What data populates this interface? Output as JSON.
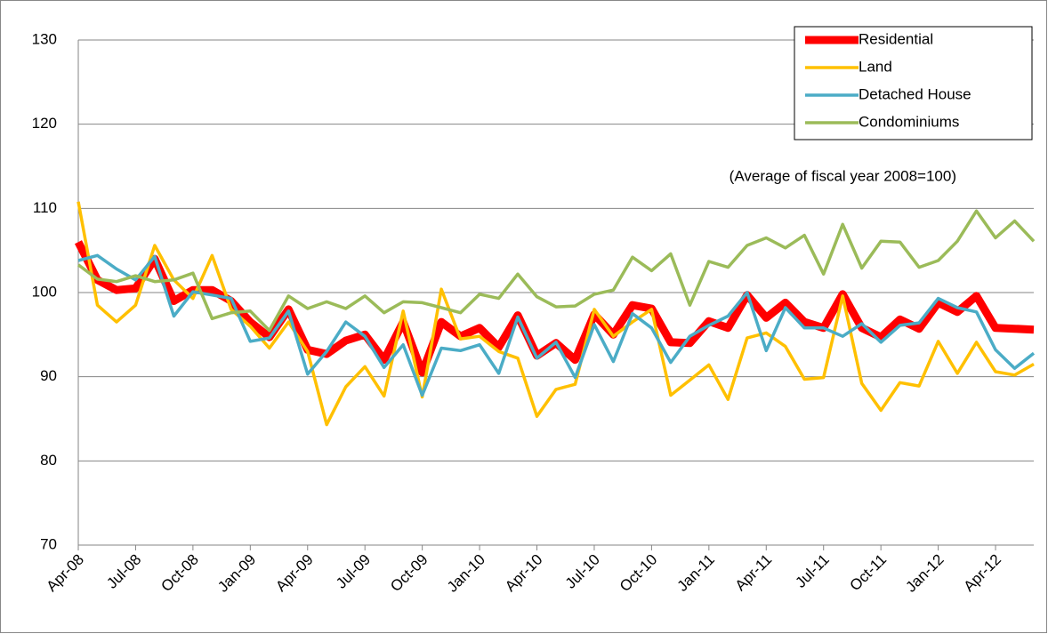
{
  "chart_data": {
    "type": "line",
    "annotation": "(Average of fiscal year 2008=100)",
    "categories": [
      "Apr-08",
      null,
      null,
      "Jul-08",
      null,
      null,
      "Oct-08",
      null,
      null,
      "Jan-09",
      null,
      null,
      "Apr-09",
      null,
      null,
      "Jul-09",
      null,
      null,
      "Oct-09",
      null,
      null,
      "Jan-10",
      null,
      null,
      "Apr-10",
      null,
      null,
      "Jul-10",
      null,
      null,
      "Oct-10",
      null,
      null,
      "Jan-11",
      null,
      null,
      "Apr-11",
      null,
      null,
      "Jul-11",
      null,
      null,
      "Oct-11",
      null,
      null,
      "Jan-12",
      null,
      null,
      "Apr-12",
      null,
      null
    ],
    "series": [
      {
        "name": "Residential",
        "color": "#ff0000",
        "values": [
          106,
          101.5,
          100.3,
          100.5,
          104,
          99,
          100.3,
          100.3,
          99,
          96.5,
          94.7,
          98,
          93.2,
          92.7,
          94.3,
          95,
          92,
          96.5,
          90.5,
          96.5,
          94.8,
          95.8,
          93.5,
          97.3,
          92.5,
          94,
          92,
          97.4,
          95,
          98.5,
          98.1,
          94.1,
          94,
          96.6,
          95.8,
          99.7,
          97,
          98.8,
          96.5,
          95.8,
          99.8,
          95.8,
          94.7,
          96.8,
          95.7,
          98.8,
          97.7,
          99.6,
          95.8,
          95.7,
          95.6
        ]
      },
      {
        "name": "Land",
        "color": "#ffc000",
        "values": [
          110.8,
          98.5,
          96.5,
          98.5,
          105.6,
          101.5,
          99.3,
          104.4,
          98,
          96,
          93.4,
          96.5,
          93,
          84.3,
          88.8,
          91.2,
          87.7,
          97.8,
          87.6,
          100.4,
          94.5,
          94.8,
          93,
          92.2,
          85.3,
          88.5,
          89.1,
          98,
          94.8,
          96.5,
          98,
          87.8,
          89.6,
          91.4,
          87.3,
          94.6,
          95.2,
          93.6,
          89.7,
          89.9,
          99.6,
          89.2,
          86,
          89.3,
          88.9,
          94.2,
          90.4,
          94.1,
          90.6,
          90.2,
          91.5
        ]
      },
      {
        "name": "Detached House",
        "color": "#4bacc6",
        "values": [
          103.8,
          104.4,
          102.8,
          101.5,
          104.3,
          97.2,
          100.1,
          99.7,
          99.3,
          94.2,
          94.6,
          97.8,
          90.3,
          93,
          96.5,
          94.8,
          91.1,
          93.8,
          87.8,
          93.4,
          93.1,
          93.8,
          90.4,
          97.1,
          92.2,
          94.1,
          89.9,
          96.2,
          91.8,
          97.5,
          95.8,
          91.7,
          94.8,
          96.1,
          97.2,
          100,
          93.1,
          98.2,
          95.8,
          95.8,
          94.8,
          96.3,
          94.1,
          96.1,
          96.4,
          99.3,
          98.2,
          97.7,
          93.2,
          91,
          92.8
        ]
      },
      {
        "name": "Condominiums",
        "color": "#9bbb59",
        "values": [
          103.3,
          101.6,
          101.3,
          102,
          101.3,
          101.5,
          102.3,
          96.9,
          97.6,
          97.8,
          95.5,
          99.6,
          98.1,
          98.9,
          98.1,
          99.6,
          97.6,
          98.9,
          98.8,
          98.2,
          97.6,
          99.8,
          99.3,
          102.2,
          99.5,
          98.3,
          98.4,
          99.8,
          100.3,
          104.2,
          102.6,
          104.6,
          98.5,
          103.7,
          103,
          105.6,
          106.5,
          105.3,
          106.8,
          102.2,
          108.1,
          102.9,
          106.1,
          106,
          103,
          103.8,
          106.1,
          109.7,
          106.5,
          108.5,
          106.1
        ]
      }
    ],
    "ylim": [
      70,
      130
    ],
    "yticks": [
      70,
      80,
      90,
      100,
      110,
      120,
      130
    ],
    "grid": true,
    "legend": "top-right"
  }
}
